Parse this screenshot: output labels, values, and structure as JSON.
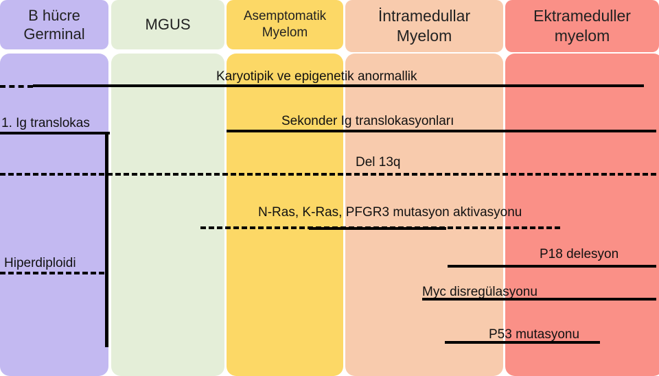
{
  "stages": [
    {
      "label": "B hücre\nGerminal",
      "color": "#c3b9f1"
    },
    {
      "label": "MGUS",
      "color": "#e4eed8"
    },
    {
      "label": "Asemptomatik\nMyelom",
      "color": "#fcd866"
    },
    {
      "label": "İntramedullar\nMyelom",
      "color": "#f8cbad"
    },
    {
      "label": "Ektrameduller\nmyelom",
      "color": "#fa9087"
    }
  ],
  "events": {
    "karyotipik": "Karyotipik  ve epigenetik anormallik",
    "ig_translokas": "1. Ig translokas",
    "sekonder": "Sekonder Ig translokasyonları",
    "del13q": "Del 13q",
    "nras": "N-Ras, K-Ras, PFGR3 mutasyon aktivasyonu",
    "p18": "P18 delesyon",
    "hiperdiploidi": "Hiperdiploidi",
    "myc": "Myc disregülasyonu",
    "p53": "P53 mutasyonu"
  }
}
